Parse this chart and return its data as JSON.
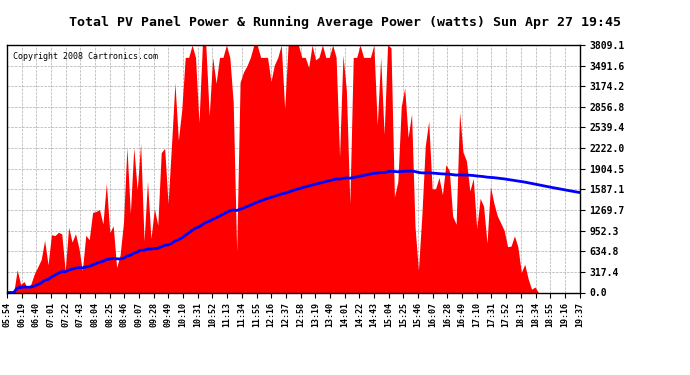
{
  "title": "Total PV Panel Power & Running Average Power (watts) Sun Apr 27 19:45",
  "copyright": "Copyright 2008 Cartronics.com",
  "ymax": 3809.1,
  "yticks": [
    0.0,
    317.4,
    634.8,
    952.3,
    1269.7,
    1587.1,
    1904.5,
    2222.0,
    2539.4,
    2856.8,
    3174.2,
    3491.6,
    3809.1
  ],
  "background_color": "#ffffff",
  "fill_color": "#ff0000",
  "avg_color": "#0000ff",
  "grid_color": "#999999",
  "x_labels": [
    "05:54",
    "06:19",
    "06:40",
    "07:01",
    "07:22",
    "07:43",
    "08:04",
    "08:25",
    "08:46",
    "09:07",
    "09:28",
    "09:49",
    "10:10",
    "10:31",
    "10:52",
    "11:13",
    "11:34",
    "11:55",
    "12:16",
    "12:37",
    "12:58",
    "13:19",
    "13:40",
    "14:01",
    "14:22",
    "14:43",
    "15:04",
    "15:25",
    "15:46",
    "16:07",
    "16:28",
    "16:49",
    "17:10",
    "17:31",
    "17:52",
    "18:13",
    "18:34",
    "18:55",
    "19:16",
    "19:37"
  ]
}
